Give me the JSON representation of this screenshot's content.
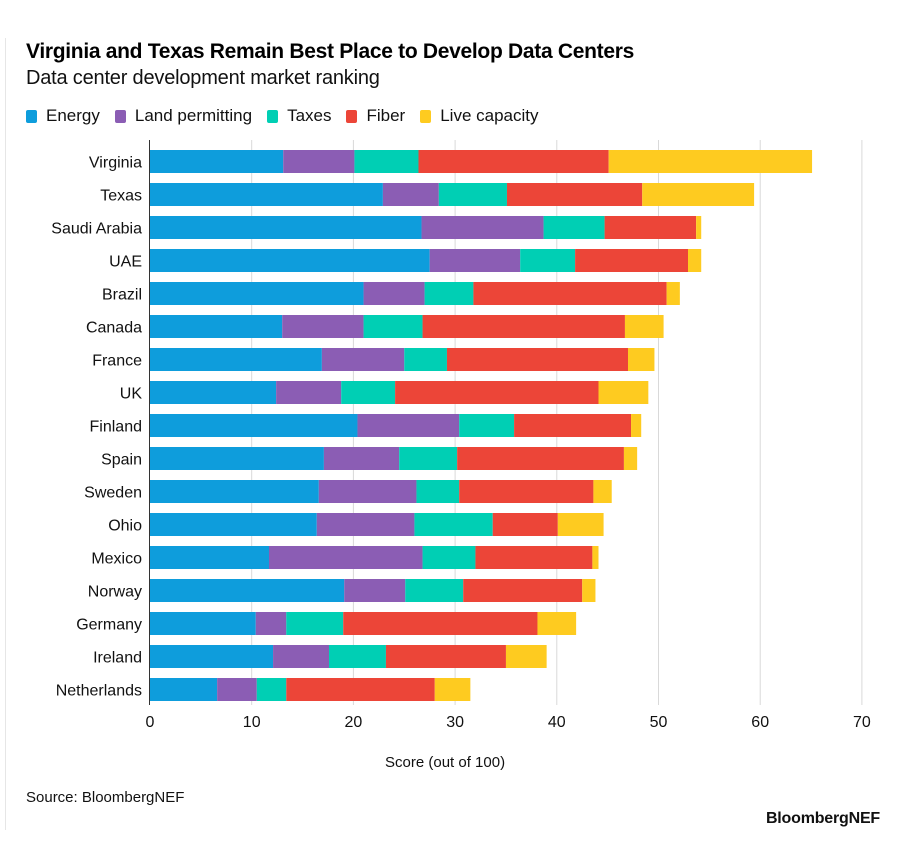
{
  "header": {
    "title": "Virginia and Texas Remain Best Place to Develop Data Centers",
    "subtitle": "Data center development market ranking"
  },
  "footer": {
    "source": "Source: BloombergNEF",
    "brand": "BloombergNEF"
  },
  "chart_data": {
    "type": "bar",
    "orientation": "horizontal",
    "stacked": true,
    "title": "Virginia and Texas Remain Best Place to Develop Data Centers",
    "subtitle": "Data center development market ranking",
    "xlabel": "Score (out of 100)",
    "ylabel": "",
    "xlim": [
      0,
      70
    ],
    "xticks": [
      0,
      10,
      20,
      30,
      40,
      50,
      60,
      70
    ],
    "grid": true,
    "legend_position": "top-left",
    "categories": [
      "Virginia",
      "Texas",
      "Saudi Arabia",
      "UAE",
      "Brazil",
      "Canada",
      "France",
      "UK",
      "Finland",
      "Spain",
      "Sweden",
      "Ohio",
      "Mexico",
      "Norway",
      "Germany",
      "Ireland",
      "Netherlands"
    ],
    "series": [
      {
        "name": "Energy",
        "color": "#0e9ddc",
        "values": [
          13.1,
          22.9,
          26.7,
          27.5,
          21.0,
          13.0,
          16.9,
          12.4,
          20.4,
          17.1,
          16.6,
          16.4,
          11.7,
          19.1,
          10.4,
          12.1,
          6.6
        ]
      },
      {
        "name": "Land permitting",
        "color": "#8b5db4",
        "values": [
          7.0,
          5.5,
          12.0,
          8.9,
          6.0,
          8.0,
          8.1,
          6.4,
          10.0,
          7.4,
          9.6,
          9.6,
          15.1,
          6.0,
          3.0,
          5.5,
          3.9
        ]
      },
      {
        "name": "Taxes",
        "color": "#00cfb4",
        "values": [
          6.3,
          6.7,
          6.0,
          5.4,
          4.8,
          5.8,
          4.2,
          5.3,
          5.4,
          5.7,
          4.2,
          7.7,
          5.2,
          5.7,
          5.6,
          5.6,
          2.9
        ]
      },
      {
        "name": "Fiber",
        "color": "#ec4538",
        "values": [
          18.7,
          13.3,
          9.0,
          11.1,
          19.0,
          19.9,
          17.8,
          20.0,
          11.5,
          16.4,
          13.2,
          6.4,
          11.5,
          11.7,
          19.1,
          11.8,
          14.6
        ]
      },
      {
        "name": "Live capacity",
        "color": "#fecb20",
        "values": [
          20.0,
          11.0,
          0.5,
          1.3,
          1.3,
          3.8,
          2.6,
          4.9,
          1.0,
          1.3,
          1.8,
          4.5,
          0.6,
          1.3,
          3.8,
          4.0,
          3.5
        ]
      }
    ]
  }
}
